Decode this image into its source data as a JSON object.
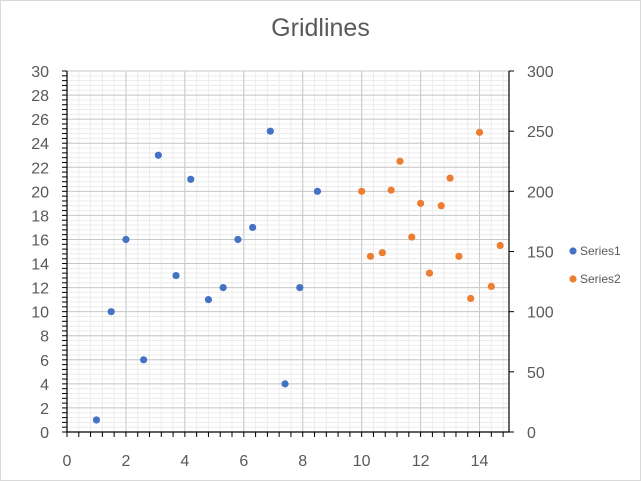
{
  "chart_data": {
    "type": "scatter",
    "title": "Gridlines",
    "xlabel": "",
    "ylabel": "",
    "xlim": [
      0,
      15
    ],
    "ylim": [
      0,
      30
    ],
    "y2lim": [
      0,
      300
    ],
    "x_ticks": [
      0,
      2,
      4,
      6,
      8,
      10,
      12,
      14
    ],
    "y_ticks": [
      0,
      2,
      4,
      6,
      8,
      10,
      12,
      14,
      16,
      18,
      20,
      22,
      24,
      26,
      28,
      30
    ],
    "y2_ticks": [
      0,
      50,
      100,
      150,
      200,
      250,
      300
    ],
    "grid": true,
    "minor_grid": true,
    "legend_position": "right",
    "series": [
      {
        "name": "Series1",
        "axis": "primary",
        "color": "#4472c4",
        "points": [
          [
            1.0,
            1
          ],
          [
            1.5,
            10
          ],
          [
            2.0,
            16
          ],
          [
            2.6,
            6
          ],
          [
            3.1,
            23
          ],
          [
            3.7,
            13
          ],
          [
            4.2,
            21
          ],
          [
            4.8,
            11
          ],
          [
            5.3,
            12
          ],
          [
            5.8,
            16
          ],
          [
            6.3,
            17
          ],
          [
            6.9,
            25
          ],
          [
            7.4,
            4
          ],
          [
            7.9,
            12
          ],
          [
            8.5,
            20
          ]
        ]
      },
      {
        "name": "Series2",
        "axis": "secondary",
        "color": "#ed7d31",
        "points": [
          [
            10.0,
            200
          ],
          [
            10.3,
            146
          ],
          [
            10.7,
            149
          ],
          [
            11.0,
            201
          ],
          [
            11.3,
            225
          ],
          [
            11.7,
            162
          ],
          [
            12.0,
            190
          ],
          [
            12.3,
            132
          ],
          [
            12.7,
            188
          ],
          [
            13.0,
            211
          ],
          [
            13.3,
            146
          ],
          [
            13.7,
            111
          ],
          [
            14.0,
            249
          ],
          [
            14.4,
            121
          ],
          [
            14.7,
            155
          ]
        ]
      }
    ]
  }
}
